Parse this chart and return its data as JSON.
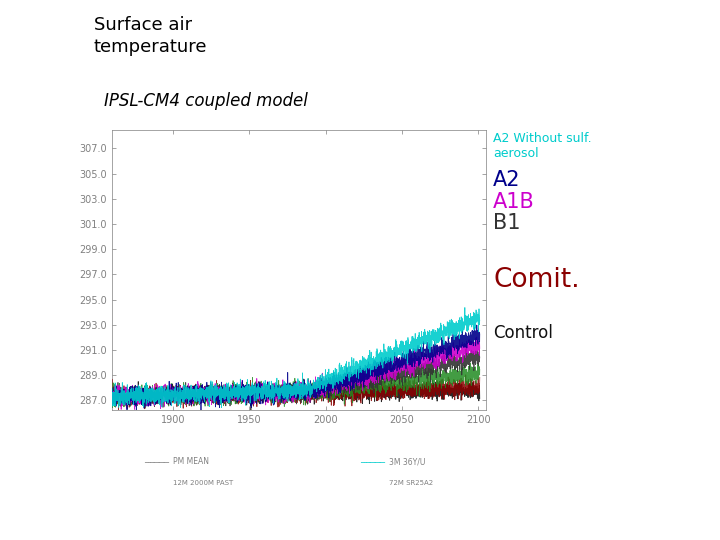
{
  "title1": "Surface air\ntemperature",
  "title2": "IPSL-CM4 coupled model",
  "yticks": [
    287.0,
    289.0,
    291.0,
    293.0,
    295.0,
    297.0,
    299.0,
    301.0,
    303.0,
    305.0,
    307.0
  ],
  "ymin": 286.2,
  "ymax": 308.5,
  "xmin": 1860,
  "xmax": 2105,
  "xticks": [
    1900,
    1950,
    2000,
    2050,
    2100
  ],
  "colors": {
    "A2_nosulf": "#00CCCC",
    "A2": "#00008B",
    "A1B": "#CC00CC",
    "B1": "#333333",
    "Comit": "#8B0000",
    "Control": "#111111",
    "green": "#228B22"
  },
  "legend": {
    "A2_nosulf": {
      "text": "A2 Without sulf.\naerosol",
      "color": "#00CCCC",
      "fontsize": 9
    },
    "A2": {
      "text": "A2",
      "color": "#00008B",
      "fontsize": 15
    },
    "A1B": {
      "text": "A1B",
      "color": "#CC00CC",
      "fontsize": 15
    },
    "B1": {
      "text": "B1",
      "color": "#333333",
      "fontsize": 15
    },
    "Comit": {
      "text": "Comit.",
      "color": "#8B0000",
      "fontsize": 19
    },
    "Control": {
      "text": "Control",
      "color": "#111111",
      "fontsize": 12
    }
  },
  "bg_color": "#FFFFFF",
  "title1_fontsize": 13,
  "title2_fontsize": 12,
  "tick_fontsize": 7
}
